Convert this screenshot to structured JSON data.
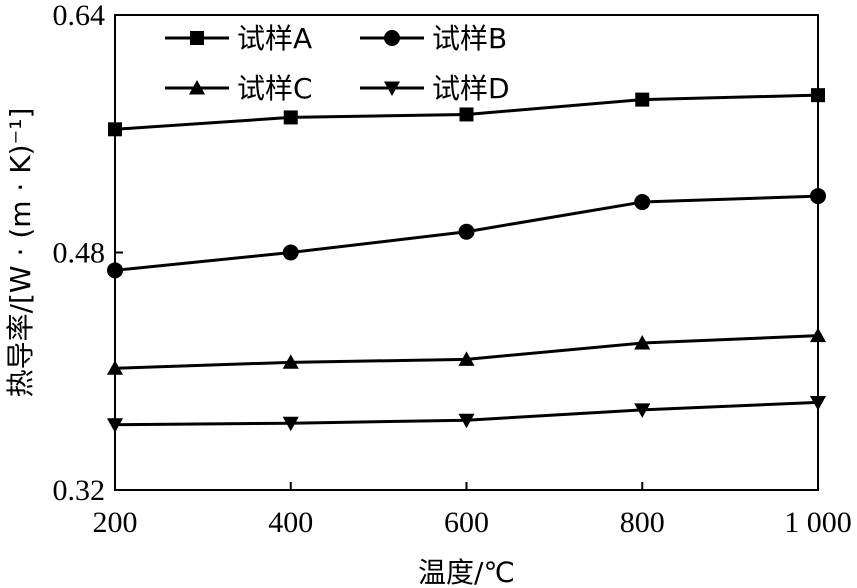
{
  "chart_data": {
    "type": "line",
    "title": "",
    "xlabel": "温度/℃",
    "ylabel": "热导率/[W · (m · K)⁻¹]",
    "x": [
      200,
      400,
      600,
      800,
      1000
    ],
    "x_tick_labels": [
      "200",
      "400",
      "600",
      "800",
      "1 000"
    ],
    "y_tick_labels": [
      "0.32",
      "0.48",
      "0.64"
    ],
    "y_ticks": [
      0.32,
      0.48,
      0.64
    ],
    "xlim": [
      200,
      1000
    ],
    "ylim": [
      0.32,
      0.64
    ],
    "grid": false,
    "legend_position": "top-left",
    "series": [
      {
        "name": "试样A",
        "marker": "square",
        "values": [
          0.563,
          0.571,
          0.573,
          0.583,
          0.586
        ]
      },
      {
        "name": "试样B",
        "marker": "circle",
        "values": [
          0.468,
          0.48,
          0.494,
          0.514,
          0.518
        ]
      },
      {
        "name": "试样C",
        "marker": "triangle-up",
        "values": [
          0.402,
          0.406,
          0.408,
          0.419,
          0.424
        ]
      },
      {
        "name": "试样D",
        "marker": "triangle-down",
        "values": [
          0.364,
          0.365,
          0.367,
          0.374,
          0.379
        ]
      }
    ],
    "line_color": "#000000"
  }
}
